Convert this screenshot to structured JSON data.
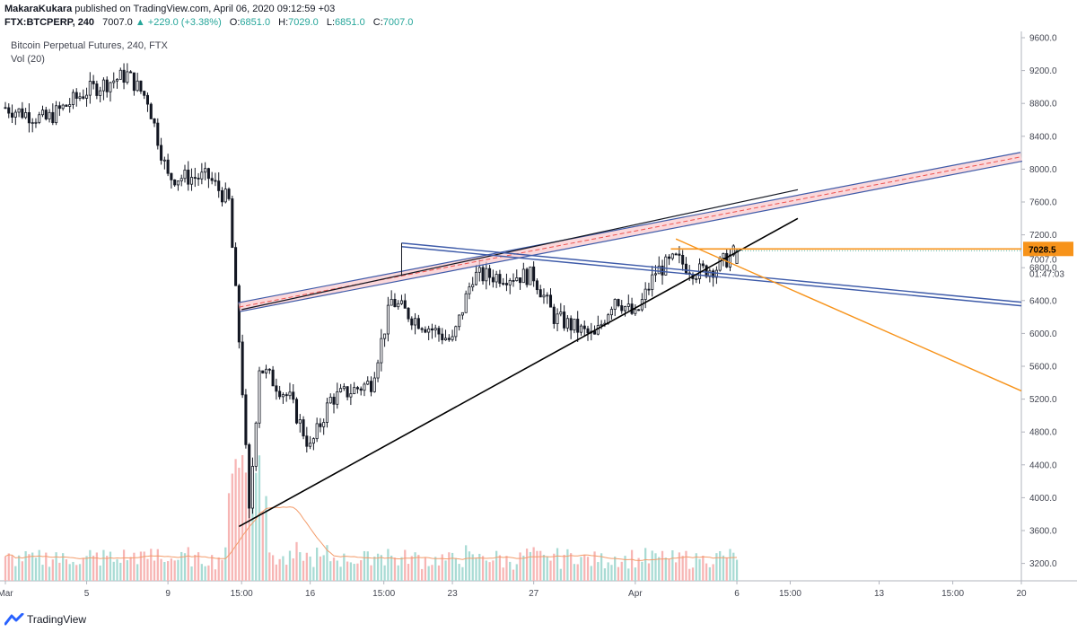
{
  "header": {
    "author": "MakaraKukara",
    "publish_text": "published on TradingView.com, April 06, 2020 09:12:59 +03",
    "symbol": "FTX:BTCPERP, 240",
    "last": "7007.0",
    "change": "▲ +229.0 (+3.38%)",
    "open_label": "O:",
    "open": "6851.0",
    "high_label": "H:",
    "high": "7029.0",
    "low_label": "L:",
    "low": "6851.0",
    "close_label": "C:",
    "close": "7007.0"
  },
  "legend": {
    "title": "Bitcoin Perpetual Futures, 240, FTX",
    "volume": "Vol (20)"
  },
  "price_axis": {
    "ticks": [
      "9600.0",
      "9200.0",
      "8800.0",
      "8400.0",
      "8000.0",
      "7600.0",
      "7200.0",
      "6800.0",
      "6400.0",
      "6000.0",
      "5600.0",
      "5200.0",
      "4800.0",
      "4400.0",
      "4000.0",
      "3600.0",
      "3200.0"
    ],
    "orange_level_label": "7028.5",
    "last_price_label": "7007.0",
    "countdown": "01:47:03"
  },
  "time_axis": {
    "labels": [
      "Mar",
      "5",
      "9",
      "15:00",
      "16",
      "15:00",
      "23",
      "27",
      "Apr",
      "6",
      "15:00",
      "13",
      "15:00",
      "20"
    ]
  },
  "footer": {
    "brand": "TradingView"
  },
  "colors": {
    "up": "#26a69a",
    "down": "#ef5350",
    "candle": "#131722",
    "orange": "#f7931a",
    "channel_blue": "#3e5ba9",
    "channel_fill": "#f8c8cc",
    "ma": "#f39c6b"
  },
  "chart_data": {
    "type": "candlestick",
    "symbol": "FTX:BTCPERP",
    "interval": "240",
    "x_range": [
      "2020-03-01",
      "2020-04-20"
    ],
    "ylim": [
      3000,
      9700
    ],
    "price_key_points": [
      {
        "date": "2020-03-01",
        "price": 8750
      },
      {
        "date": "2020-03-03",
        "price": 8600
      },
      {
        "date": "2020-03-05",
        "price": 8950
      },
      {
        "date": "2020-03-07",
        "price": 9150
      },
      {
        "date": "2020-03-08",
        "price": 8850
      },
      {
        "date": "2020-03-09",
        "price": 7900
      },
      {
        "date": "2020-03-11",
        "price": 7900
      },
      {
        "date": "2020-03-12",
        "price": 7600
      },
      {
        "date": "2020-03-12T15:00",
        "price": 5500
      },
      {
        "date": "2020-03-13",
        "price": 3800
      },
      {
        "date": "2020-03-13T12:00",
        "price": 5600
      },
      {
        "date": "2020-03-15",
        "price": 5200
      },
      {
        "date": "2020-03-16",
        "price": 4600
      },
      {
        "date": "2020-03-17",
        "price": 5200
      },
      {
        "date": "2020-03-19",
        "price": 5400
      },
      {
        "date": "2020-03-20",
        "price": 6400
      },
      {
        "date": "2020-03-21",
        "price": 6200
      },
      {
        "date": "2020-03-23",
        "price": 5900
      },
      {
        "date": "2020-03-24",
        "price": 6700
      },
      {
        "date": "2020-03-26",
        "price": 6700
      },
      {
        "date": "2020-03-27",
        "price": 6700
      },
      {
        "date": "2020-03-28",
        "price": 6200
      },
      {
        "date": "2020-03-30",
        "price": 5950
      },
      {
        "date": "2020-03-31",
        "price": 6450
      },
      {
        "date": "2020-04-01",
        "price": 6200
      },
      {
        "date": "2020-04-02",
        "price": 6750
      },
      {
        "date": "2020-04-03",
        "price": 6900
      },
      {
        "date": "2020-04-04",
        "price": 6750
      },
      {
        "date": "2020-04-05",
        "price": 6800
      },
      {
        "date": "2020-04-06",
        "price": 7007
      }
    ],
    "last_candle": {
      "open": 6851.0,
      "high": 7029.0,
      "low": 6851.0,
      "close": 7007.0
    },
    "horizontal_level": 7028.5,
    "volume_ma_period": 20
  }
}
